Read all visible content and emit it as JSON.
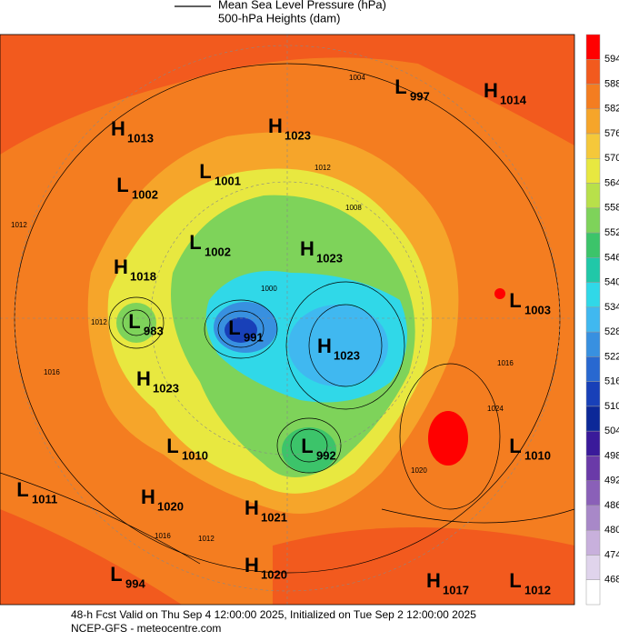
{
  "header": {
    "legend": [
      "Mean Sea Level Pressure (hPa)",
      "500-hPa Heights (dam)"
    ]
  },
  "centers": [
    {
      "letter": "H",
      "value": "1013"
    },
    {
      "letter": "H",
      "value": "1023"
    },
    {
      "letter": "L",
      "value": "997"
    },
    {
      "letter": "H",
      "value": "1014"
    },
    {
      "letter": "L",
      "value": "1001"
    },
    {
      "letter": "L",
      "value": "1002"
    },
    {
      "letter": "L",
      "value": "1002"
    },
    {
      "letter": "H",
      "value": "1023"
    },
    {
      "letter": "H",
      "value": "1018"
    },
    {
      "letter": "L",
      "value": "1003"
    },
    {
      "letter": "L",
      "value": "983"
    },
    {
      "letter": "L",
      "value": "991"
    },
    {
      "letter": "H",
      "value": "1023"
    },
    {
      "letter": "H",
      "value": "1023"
    },
    {
      "letter": "L",
      "value": "1010"
    },
    {
      "letter": "L",
      "value": "992"
    },
    {
      "letter": "L",
      "value": "1010"
    },
    {
      "letter": "L",
      "value": "1011"
    },
    {
      "letter": "H",
      "value": "1020"
    },
    {
      "letter": "H",
      "value": "1021"
    },
    {
      "letter": "L",
      "value": "994"
    },
    {
      "letter": "H",
      "value": "1020"
    },
    {
      "letter": "H",
      "value": "1017"
    },
    {
      "letter": "L",
      "value": "1012"
    }
  ],
  "contour_labels": [
    "1004",
    "1012",
    "1008",
    "1000",
    "1012",
    "1016",
    "1024",
    "1020",
    "1016",
    "1012",
    "1016",
    "1012"
  ],
  "colorbar": {
    "labels": [
      "594",
      "588",
      "582",
      "576",
      "570",
      "564",
      "558",
      "552",
      "546",
      "540",
      "534",
      "528",
      "522",
      "516",
      "510",
      "504",
      "498",
      "492",
      "486",
      "480",
      "474",
      "468"
    ]
  },
  "footer": [
    "48-h Fcst Valid on Thu Sep  4 12:00:00 2025, Initialized on Tue Sep  2 12:00:00 2025",
    "NCEP-GFS  - meteocentre.com"
  ]
}
